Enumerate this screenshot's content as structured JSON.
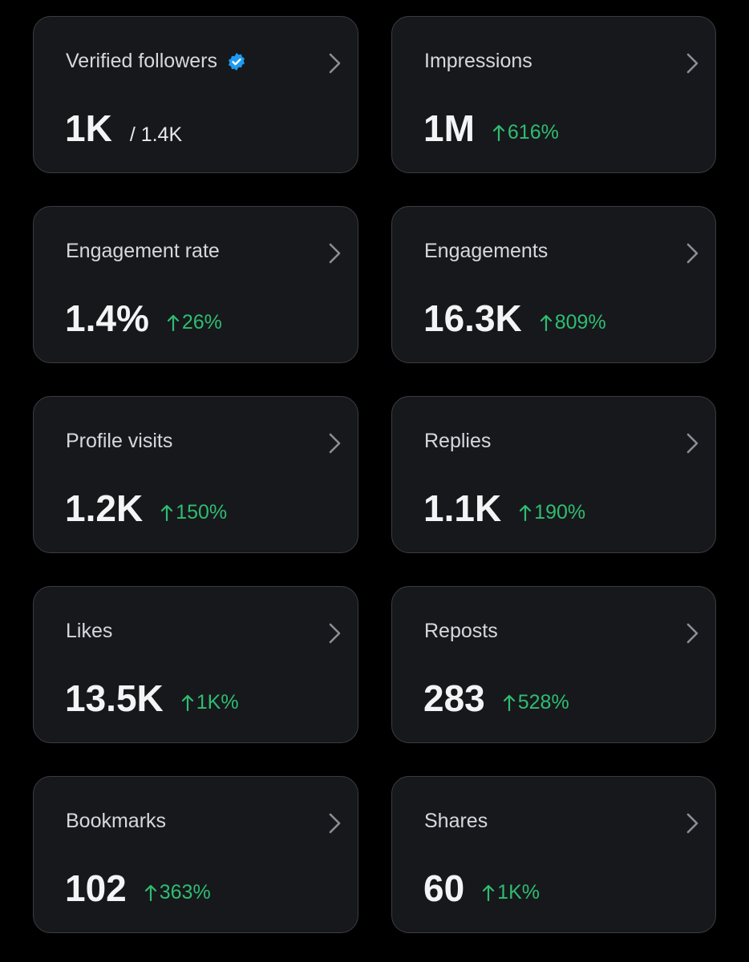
{
  "cards": [
    {
      "label": "Verified followers",
      "value": "1K",
      "total": "/ 1.4K"
    },
    {
      "label": "Impressions",
      "value": "1M",
      "change": "616%"
    },
    {
      "label": "Engagement rate",
      "value": "1.4%",
      "change": "26%"
    },
    {
      "label": "Engagements",
      "value": "16.3K",
      "change": "809%"
    },
    {
      "label": "Profile visits",
      "value": "1.2K",
      "change": "150%"
    },
    {
      "label": "Replies",
      "value": "1.1K",
      "change": "190%"
    },
    {
      "label": "Likes",
      "value": "13.5K",
      "change": "1K%"
    },
    {
      "label": "Reposts",
      "value": "283",
      "change": "528%"
    },
    {
      "label": "Bookmarks",
      "value": "102",
      "change": "363%"
    },
    {
      "label": "Shares",
      "value": "60",
      "change": "1K%"
    }
  ]
}
